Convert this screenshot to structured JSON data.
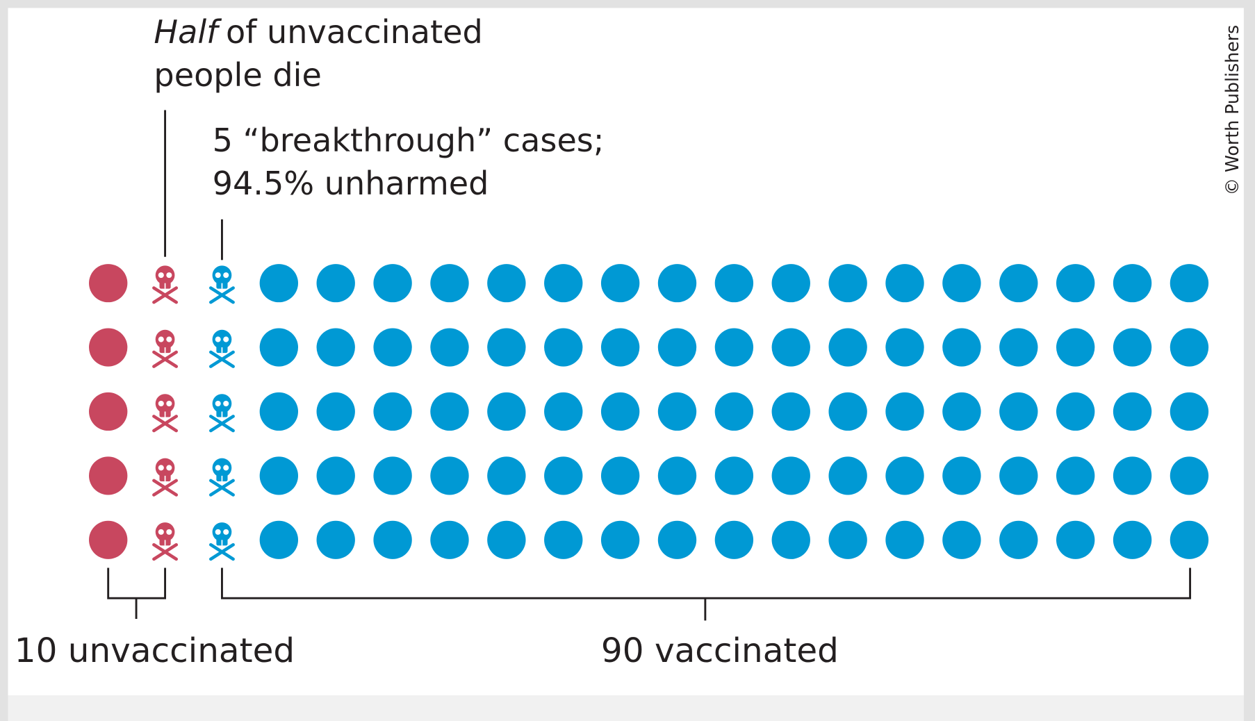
{
  "annotations": {
    "deaths": {
      "emphasis": "Half",
      "rest": "of unvaccinated",
      "line2": "people die"
    },
    "breakthrough": {
      "line1": "5 “breakthrough” cases;",
      "line2": "94.5% unharmed"
    }
  },
  "groups": {
    "unvaccinated": "10 unvaccinated",
    "vaccinated": "90 vaccinated"
  },
  "credit": "© Worth Publishers",
  "colors": {
    "unvaccinated": "#c8475f",
    "vaccinated": "#0099d4"
  }
}
